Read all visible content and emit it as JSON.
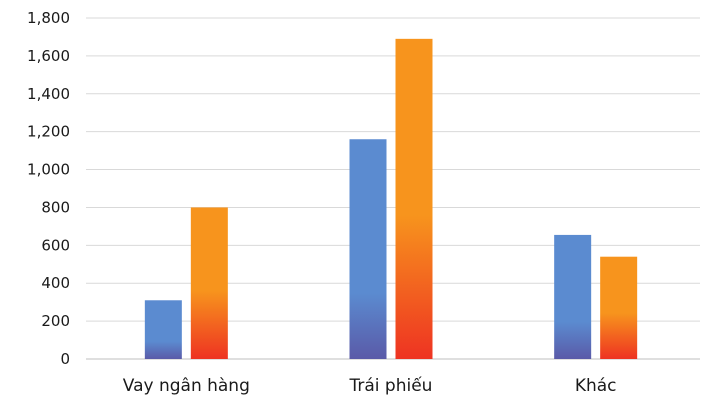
{
  "chart_data": {
    "type": "bar",
    "categories": [
      "Vay ngân hàng",
      "Trái phiếu",
      "Khác"
    ],
    "series": [
      {
        "values": [
          310,
          1160,
          655
        ]
      },
      {
        "values": [
          800,
          1690,
          540
        ]
      }
    ],
    "colors": {
      "series_1": {
        "top": "#5b8bd0",
        "bottom": "#5a5aa8"
      },
      "series_2": {
        "top": "#f7941d",
        "bottom": "#ee3322"
      }
    },
    "ylim": [
      0,
      1800
    ],
    "ytick_labels": [
      "0",
      "200",
      "400",
      "600",
      "800",
      "1,000",
      "1,200",
      "1,400",
      "1,600",
      "1,800"
    ],
    "xlabel": "",
    "ylabel": "",
    "title": "",
    "grid": "horizontal",
    "legend": "none"
  }
}
